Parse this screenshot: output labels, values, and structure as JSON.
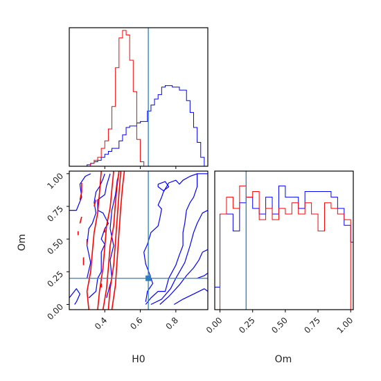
{
  "chart_data": {
    "type": "corner",
    "parameters": [
      "H0",
      "Om"
    ],
    "truth": {
      "H0": 0.645,
      "Om": 0.2
    },
    "colors": {
      "blue": "#0000ff",
      "red": "#ff0000",
      "truth": "#2f7fb8"
    },
    "ranges": {
      "H0": [
        0.2,
        0.98
      ],
      "Om": [
        -0.04,
        1.02
      ]
    },
    "ticks": {
      "H0": {
        "values": [
          0.4,
          0.6,
          0.8
        ],
        "labels": [
          "0.4",
          "0.6",
          "0.8"
        ]
      },
      "Om": {
        "values": [
          0.0,
          0.25,
          0.5,
          0.75,
          1.0
        ],
        "labels": [
          "0.00",
          "0.25",
          "0.50",
          "0.75",
          "1.00"
        ]
      }
    },
    "hist_H0": {
      "edges": [
        0.2,
        0.22,
        0.24,
        0.26,
        0.28,
        0.3,
        0.32,
        0.34,
        0.36,
        0.38,
        0.4,
        0.42,
        0.44,
        0.46,
        0.48,
        0.5,
        0.52,
        0.54,
        0.56,
        0.58,
        0.6,
        0.62,
        0.64,
        0.66,
        0.68,
        0.7,
        0.72,
        0.74,
        0.76,
        0.78,
        0.8,
        0.82,
        0.84,
        0.86,
        0.88,
        0.9,
        0.92,
        0.94,
        0.96,
        0.98
      ],
      "blue": [
        0,
        0,
        0,
        0,
        0,
        1,
        2,
        3,
        4,
        6,
        8,
        10,
        12,
        12,
        17,
        21,
        26,
        27,
        27,
        29,
        30,
        30,
        37,
        41,
        45,
        48,
        53,
        54,
        54,
        53,
        53,
        51,
        51,
        44,
        36,
        26,
        16,
        6,
        0
      ],
      "red": [
        0,
        0,
        0,
        0,
        0,
        0,
        2,
        4,
        6,
        12,
        17,
        25,
        40,
        66,
        86,
        91,
        88,
        71,
        50,
        18,
        3,
        0,
        0,
        0,
        0,
        0,
        0,
        0,
        0,
        0,
        0,
        0,
        0,
        0,
        0,
        0,
        0,
        0,
        0
      ]
    },
    "hist_Om": {
      "edges": [
        -0.04,
        0.0,
        0.05,
        0.1,
        0.15,
        0.2,
        0.25,
        0.3,
        0.35,
        0.4,
        0.45,
        0.5,
        0.55,
        0.6,
        0.65,
        0.7,
        0.75,
        0.8,
        0.85,
        0.9,
        0.95,
        1.0,
        1.02
      ],
      "blue": [
        4,
        17,
        17,
        14,
        19,
        20,
        18,
        17,
        20,
        17,
        22,
        20,
        20,
        18,
        21,
        21,
        21,
        21,
        20,
        18,
        15,
        12
      ],
      "red": [
        0,
        17,
        20,
        18,
        22,
        20,
        21,
        16,
        18,
        16,
        18,
        17,
        19,
        17,
        19,
        17,
        14,
        19,
        18,
        17,
        16,
        0
      ]
    },
    "contours": {
      "blue": [
        [
          [
            0.63,
            0.0
          ],
          [
            0.66,
            0.05
          ],
          [
            0.7,
            0.1
          ],
          [
            0.74,
            0.1
          ],
          [
            0.76,
            0.2
          ],
          [
            0.8,
            0.3
          ],
          [
            0.82,
            0.38
          ],
          [
            0.84,
            0.45
          ],
          [
            0.84,
            0.55
          ],
          [
            0.85,
            0.62
          ],
          [
            0.86,
            0.72
          ],
          [
            0.88,
            0.78
          ],
          [
            0.9,
            0.82
          ],
          [
            0.92,
            0.9
          ],
          [
            0.92,
            1.0
          ]
        ],
        [
          [
            0.66,
            0.0
          ],
          [
            0.72,
            0.04
          ],
          [
            0.77,
            0.12
          ],
          [
            0.8,
            0.2
          ],
          [
            0.85,
            0.32
          ],
          [
            0.88,
            0.45
          ],
          [
            0.9,
            0.55
          ],
          [
            0.92,
            0.62
          ],
          [
            0.95,
            0.7
          ],
          [
            0.98,
            0.72
          ]
        ],
        [
          [
            0.71,
            0.0
          ],
          [
            0.76,
            0.06
          ],
          [
            0.82,
            0.15
          ],
          [
            0.86,
            0.22
          ],
          [
            0.9,
            0.28
          ],
          [
            0.93,
            0.34
          ],
          [
            0.95,
            0.4
          ],
          [
            0.98,
            0.42
          ]
        ],
        [
          [
            0.79,
            0.0
          ],
          [
            0.84,
            0.04
          ],
          [
            0.9,
            0.08
          ],
          [
            0.96,
            0.12
          ],
          [
            0.98,
            0.1
          ]
        ],
        [
          [
            0.98,
            1.0
          ],
          [
            0.92,
            1.0
          ],
          [
            0.88,
            0.98
          ],
          [
            0.84,
            0.95
          ],
          [
            0.82,
            0.92
          ],
          [
            0.8,
            0.95
          ],
          [
            0.76,
            0.93
          ],
          [
            0.73,
            0.86
          ],
          [
            0.72,
            0.82
          ],
          [
            0.7,
            0.76
          ],
          [
            0.72,
            0.73
          ],
          [
            0.71,
            0.66
          ],
          [
            0.7,
            0.6
          ],
          [
            0.66,
            0.55
          ],
          [
            0.64,
            0.46
          ],
          [
            0.62,
            0.4
          ],
          [
            0.63,
            0.31
          ],
          [
            0.65,
            0.24
          ],
          [
            0.67,
            0.16
          ],
          [
            0.64,
            0.1
          ],
          [
            0.63,
            0.02
          ]
        ],
        [
          [
            0.2,
            0.05
          ],
          [
            0.24,
            0.12
          ],
          [
            0.26,
            0.08
          ],
          [
            0.24,
            0.02
          ],
          [
            0.23,
            0.0
          ]
        ],
        [
          [
            0.2,
            0.72
          ],
          [
            0.24,
            0.72
          ],
          [
            0.27,
            0.82
          ],
          [
            0.26,
            0.92
          ],
          [
            0.29,
            0.98
          ],
          [
            0.32,
            1.0
          ]
        ],
        [
          [
            0.3,
            0.2
          ],
          [
            0.32,
            0.32
          ],
          [
            0.3,
            0.45
          ],
          [
            0.31,
            0.58
          ],
          [
            0.33,
            0.62
          ],
          [
            0.35,
            0.7
          ],
          [
            0.34,
            0.78
          ],
          [
            0.35,
            0.86
          ],
          [
            0.37,
            0.9
          ],
          [
            0.39,
            0.96
          ],
          [
            0.4,
            1.0
          ]
        ],
        [
          [
            0.31,
            0.05
          ],
          [
            0.35,
            0.1
          ],
          [
            0.36,
            0.2
          ],
          [
            0.38,
            0.25
          ],
          [
            0.38,
            0.4
          ],
          [
            0.4,
            0.46
          ],
          [
            0.38,
            0.5
          ],
          [
            0.4,
            0.58
          ],
          [
            0.42,
            0.62
          ],
          [
            0.39,
            0.7
          ],
          [
            0.36,
            0.72
          ],
          [
            0.36,
            0.8
          ],
          [
            0.4,
            0.84
          ],
          [
            0.41,
            0.91
          ],
          [
            0.43,
            1.0
          ]
        ],
        [
          [
            0.41,
            0.05
          ],
          [
            0.44,
            0.2
          ],
          [
            0.43,
            0.34
          ],
          [
            0.45,
            0.45
          ],
          [
            0.43,
            0.58
          ],
          [
            0.44,
            0.72
          ],
          [
            0.46,
            0.84
          ],
          [
            0.47,
            0.95
          ],
          [
            0.48,
            1.0
          ]
        ],
        [
          [
            0.7,
            0.92
          ],
          [
            0.74,
            0.94
          ],
          [
            0.76,
            0.9
          ],
          [
            0.73,
            0.87
          ],
          [
            0.7,
            0.9
          ],
          [
            0.7,
            0.92
          ]
        ],
        [
          [
            0.92,
            0.2
          ],
          [
            0.96,
            0.22
          ],
          [
            0.98,
            0.24
          ]
        ]
      ],
      "red": [
        [
          [
            0.31,
            -0.04
          ],
          [
            0.3,
            0.1
          ],
          [
            0.32,
            0.25
          ],
          [
            0.33,
            0.4
          ],
          [
            0.34,
            0.55
          ],
          [
            0.36,
            0.7
          ],
          [
            0.37,
            0.85
          ],
          [
            0.38,
            1.02
          ]
        ],
        [
          [
            0.36,
            -0.04
          ],
          [
            0.37,
            0.1
          ],
          [
            0.39,
            0.28
          ],
          [
            0.4,
            0.44
          ],
          [
            0.41,
            0.6
          ],
          [
            0.43,
            0.74
          ],
          [
            0.44,
            0.88
          ],
          [
            0.45,
            1.02
          ]
        ],
        [
          [
            0.39,
            -0.04
          ],
          [
            0.41,
            0.12
          ],
          [
            0.42,
            0.28
          ],
          [
            0.43,
            0.45
          ],
          [
            0.45,
            0.6
          ],
          [
            0.46,
            0.78
          ],
          [
            0.47,
            0.92
          ],
          [
            0.48,
            1.02
          ]
        ],
        [
          [
            0.42,
            -0.04
          ],
          [
            0.43,
            0.12
          ],
          [
            0.45,
            0.3
          ],
          [
            0.46,
            0.48
          ],
          [
            0.47,
            0.66
          ],
          [
            0.48,
            0.85
          ],
          [
            0.49,
            1.02
          ]
        ],
        [
          [
            0.44,
            -0.04
          ],
          [
            0.46,
            0.15
          ],
          [
            0.47,
            0.35
          ],
          [
            0.48,
            0.55
          ],
          [
            0.49,
            0.75
          ],
          [
            0.5,
            0.9
          ],
          [
            0.51,
            1.02
          ]
        ],
        [
          [
            0.26,
            0.8
          ],
          [
            0.27,
            0.86
          ],
          [
            0.27,
            0.93
          ]
        ],
        [
          [
            0.26,
            0.62
          ],
          [
            0.27,
            0.67
          ]
        ],
        [
          [
            0.25,
            0.53
          ],
          [
            0.25,
            0.56
          ]
        ],
        [
          [
            0.28,
            0.3
          ],
          [
            0.28,
            0.36
          ]
        ],
        [
          [
            0.34,
            0.75
          ],
          [
            0.35,
            0.8
          ]
        ],
        [
          [
            0.3,
            0.46
          ],
          [
            0.3,
            0.5
          ]
        ],
        [
          [
            0.38,
            0.13
          ],
          [
            0.38,
            0.16
          ]
        ],
        [
          [
            0.4,
            0.55
          ],
          [
            0.4,
            0.58
          ]
        ]
      ]
    },
    "xlabel_bottom_left": "H0",
    "xlabel_bottom_right": "Om",
    "ylabel_left": "Om",
    "grid": false,
    "legend": "none"
  }
}
